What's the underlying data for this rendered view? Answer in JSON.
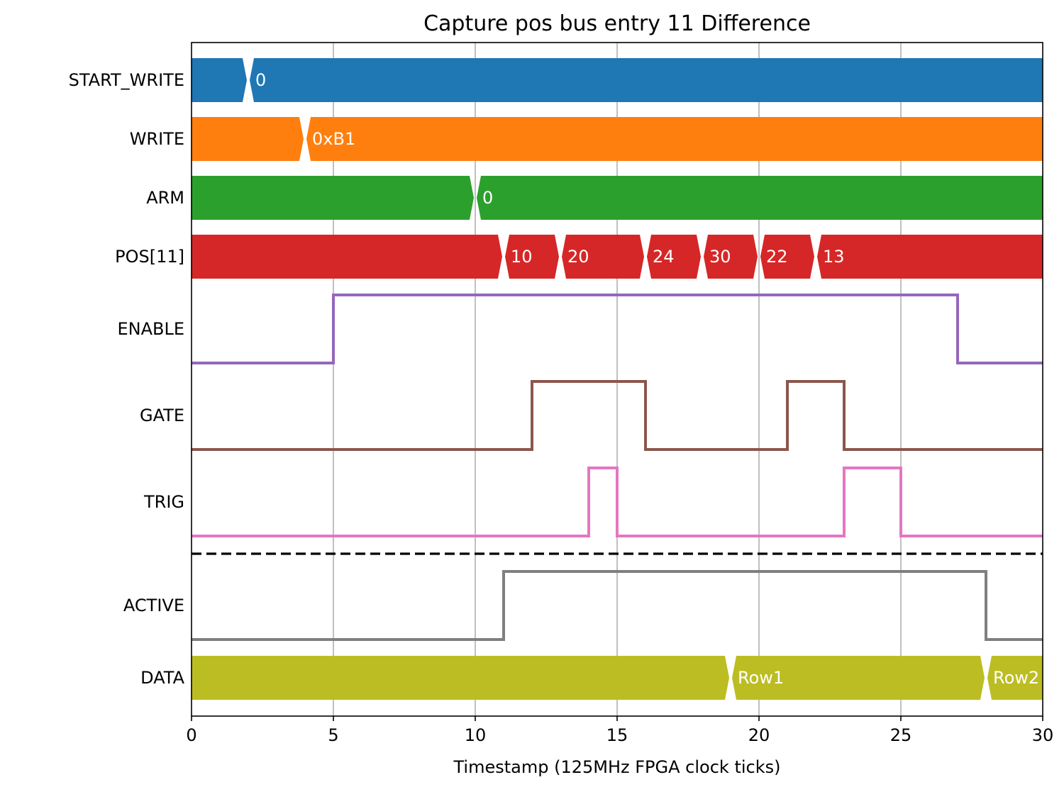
{
  "chart_data": {
    "type": "timing-diagram",
    "title": "Capture pos bus entry 11 Difference",
    "xlabel": "Timestamp (125MHz FPGA clock ticks)",
    "xlim": [
      0,
      30
    ],
    "xticks": [
      0,
      5,
      10,
      15,
      20,
      25,
      30
    ],
    "grid": "vertical",
    "signals": [
      {
        "name": "START_WRITE",
        "kind": "bus",
        "color": "#1f77b4",
        "segments": [
          {
            "start": 0,
            "end": 2,
            "value": ""
          },
          {
            "start": 2,
            "end": 30,
            "value": "0"
          }
        ]
      },
      {
        "name": "WRITE",
        "kind": "bus",
        "color": "#ff7f0e",
        "segments": [
          {
            "start": 0,
            "end": 4,
            "value": ""
          },
          {
            "start": 4,
            "end": 30,
            "value": "0xB1"
          }
        ]
      },
      {
        "name": "ARM",
        "kind": "bus",
        "color": "#2ca02c",
        "segments": [
          {
            "start": 0,
            "end": 10,
            "value": ""
          },
          {
            "start": 10,
            "end": 30,
            "value": "0"
          }
        ]
      },
      {
        "name": "POS[11]",
        "kind": "bus",
        "color": "#d62728",
        "segments": [
          {
            "start": 0,
            "end": 11,
            "value": ""
          },
          {
            "start": 11,
            "end": 13,
            "value": "10"
          },
          {
            "start": 13,
            "end": 16,
            "value": "20"
          },
          {
            "start": 16,
            "end": 18,
            "value": "24"
          },
          {
            "start": 18,
            "end": 20,
            "value": "30"
          },
          {
            "start": 20,
            "end": 22,
            "value": "22"
          },
          {
            "start": 22,
            "end": 30,
            "value": "13"
          }
        ]
      },
      {
        "name": "ENABLE",
        "kind": "bit",
        "color": "#9467bd",
        "initial": 0,
        "edges": [
          5,
          27
        ]
      },
      {
        "name": "GATE",
        "kind": "bit",
        "color": "#8c564b",
        "initial": 0,
        "edges": [
          12,
          16,
          21,
          23
        ]
      },
      {
        "name": "TRIG",
        "kind": "bit",
        "color": "#e377c2",
        "initial": 0,
        "edges": [
          14,
          15,
          23,
          25
        ]
      },
      {
        "name": "ACTIVE",
        "kind": "bit",
        "color": "#7f7f7f",
        "initial": 0,
        "edges": [
          11,
          28
        ]
      },
      {
        "name": "DATA",
        "kind": "bus",
        "color": "#bcbd22",
        "segments": [
          {
            "start": 0,
            "end": 19,
            "value": ""
          },
          {
            "start": 19,
            "end": 28,
            "value": "Row1"
          },
          {
            "start": 28,
            "end": 30,
            "value": "Row2"
          }
        ]
      }
    ],
    "separator_after": "TRIG"
  }
}
